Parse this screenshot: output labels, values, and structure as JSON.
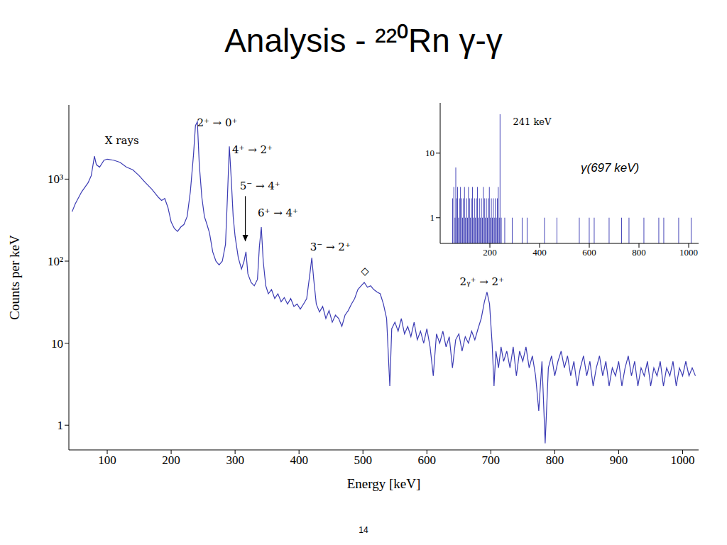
{
  "title": "Analysis - ²²⁰Rn γ-γ",
  "page": 14,
  "chart_data": [
    {
      "type": "line",
      "xlabel": "Energy [keV]",
      "ylabel": "Counts per keV",
      "color": "#3c3cb4",
      "log": "y",
      "xlim": [
        40,
        1025
      ],
      "xticks": [
        100,
        200,
        300,
        400,
        500,
        600,
        700,
        800,
        900,
        1000
      ],
      "ylim": [
        0.5,
        8000
      ],
      "yticks": [
        1,
        10,
        {
          "value": 100,
          "label": "10²"
        },
        {
          "value": 1000,
          "label": "10³"
        }
      ],
      "x": [
        45,
        50,
        60,
        70,
        75,
        80,
        83,
        88,
        95,
        100,
        110,
        120,
        130,
        140,
        150,
        160,
        170,
        180,
        185,
        190,
        195,
        200,
        205,
        210,
        215,
        220,
        225,
        230,
        235,
        238,
        241,
        244,
        248,
        252,
        256,
        260,
        265,
        270,
        275,
        280,
        285,
        288,
        291,
        294,
        297,
        300,
        305,
        310,
        314,
        317,
        320,
        325,
        330,
        335,
        338,
        341,
        344,
        348,
        352,
        357,
        362,
        367,
        372,
        377,
        382,
        387,
        392,
        397,
        402,
        407,
        412,
        417,
        420,
        423,
        427,
        432,
        437,
        442,
        447,
        452,
        457,
        462,
        467,
        472,
        477,
        482,
        487,
        492,
        497,
        502,
        507,
        512,
        517,
        522,
        527,
        532,
        537,
        542,
        545,
        550,
        555,
        560,
        565,
        570,
        575,
        580,
        585,
        590,
        595,
        600,
        605,
        610,
        615,
        620,
        625,
        630,
        635,
        640,
        645,
        650,
        655,
        660,
        665,
        670,
        675,
        680,
        685,
        690,
        694,
        698,
        702,
        705,
        708,
        712,
        716,
        720,
        725,
        730,
        735,
        740,
        745,
        750,
        755,
        760,
        765,
        770,
        775,
        780,
        785,
        790,
        795,
        800,
        805,
        810,
        815,
        820,
        825,
        830,
        835,
        840,
        845,
        850,
        855,
        860,
        865,
        870,
        875,
        880,
        885,
        890,
        895,
        900,
        905,
        910,
        915,
        920,
        925,
        930,
        935,
        940,
        945,
        950,
        955,
        960,
        965,
        970,
        975,
        980,
        985,
        990,
        995,
        1000,
        1005,
        1010,
        1015,
        1020
      ],
      "values": [
        400,
        500,
        700,
        900,
        1100,
        1900,
        1500,
        1400,
        1700,
        1750,
        1700,
        1600,
        1400,
        1300,
        1100,
        900,
        750,
        600,
        550,
        580,
        450,
        300,
        250,
        230,
        260,
        280,
        350,
        700,
        2000,
        4500,
        5000,
        1500,
        600,
        350,
        280,
        220,
        130,
        100,
        90,
        100,
        160,
        600,
        2500,
        1000,
        350,
        200,
        110,
        80,
        100,
        130,
        70,
        55,
        50,
        60,
        150,
        260,
        100,
        50,
        40,
        45,
        35,
        40,
        32,
        36,
        30,
        35,
        28,
        30,
        26,
        30,
        35,
        70,
        110,
        60,
        30,
        24,
        28,
        20,
        25,
        18,
        22,
        20,
        16,
        22,
        25,
        30,
        35,
        45,
        50,
        55,
        48,
        50,
        45,
        42,
        40,
        30,
        20,
        3,
        15,
        18,
        14,
        20,
        13,
        16,
        12,
        18,
        11,
        14,
        10,
        15,
        9,
        4,
        13,
        10,
        14,
        9,
        12,
        5,
        11,
        13,
        8,
        12,
        10,
        14,
        11,
        15,
        20,
        32,
        42,
        30,
        10,
        3,
        8,
        5,
        9,
        6,
        8,
        5,
        9,
        4,
        8,
        6,
        9,
        5,
        7,
        4,
        1.5,
        6,
        0.6,
        5,
        7,
        4,
        6,
        8,
        5,
        7,
        4,
        6,
        3,
        5,
        7,
        4,
        6,
        3,
        5,
        7,
        4,
        6,
        3,
        5,
        4,
        6,
        3,
        5,
        7,
        4,
        6,
        3,
        5,
        4,
        6,
        3,
        5,
        4,
        6,
        3,
        5,
        4,
        6,
        3,
        5,
        4,
        6,
        4,
        5,
        4
      ],
      "annotations": [
        {
          "text": "X rays",
          "x": 123,
          "y": 3000
        },
        {
          "text": "2⁺ → 0⁺",
          "x": 272,
          "y": 4900
        },
        {
          "text": "4⁺ → 2⁺",
          "x": 327,
          "y": 2300
        },
        {
          "text": "5⁻ → 4⁺",
          "x": 339,
          "y": 830,
          "arrow": [
            {
              "x": 316,
              "y": 620
            },
            {
              "x": 316,
              "y": 175
            }
          ]
        },
        {
          "text": "6⁺ → 4⁺",
          "x": 367,
          "y": 390
        },
        {
          "text": "3⁻ → 2⁺",
          "x": 449,
          "y": 150
        },
        {
          "text": "◇",
          "x": 503,
          "y": 76
        },
        {
          "text": "2ᵧ⁺ → 2⁺",
          "x": 686,
          "y": 56
        }
      ]
    },
    {
      "type": "bar",
      "gate": "γ(697 keV)",
      "color": "#3c3cb4",
      "log": "y",
      "xlim": [
        0,
        1040
      ],
      "xticks": [
        200,
        400,
        600,
        800,
        1000
      ],
      "ylim": [
        0.4,
        60
      ],
      "yticks": [
        1,
        10
      ],
      "x": [
        50,
        55,
        60,
        63,
        66,
        70,
        74,
        78,
        82,
        86,
        90,
        94,
        98,
        102,
        106,
        110,
        114,
        118,
        122,
        126,
        130,
        134,
        138,
        142,
        146,
        150,
        154,
        158,
        162,
        166,
        170,
        174,
        178,
        182,
        186,
        190,
        194,
        198,
        202,
        206,
        210,
        214,
        218,
        222,
        226,
        230,
        234,
        238,
        241,
        246,
        260,
        290,
        330,
        350,
        420,
        470,
        560,
        600,
        620,
        680,
        730,
        760,
        820,
        880,
        900,
        960,
        1010
      ],
      "values": [
        2,
        3,
        1,
        6,
        2,
        3,
        1,
        2,
        3,
        2,
        1,
        2,
        3,
        1,
        2,
        1,
        3,
        2,
        1,
        2,
        3,
        1,
        2,
        1,
        2,
        3,
        1,
        2,
        1,
        2,
        1,
        3,
        2,
        1,
        2,
        1,
        2,
        3,
        1,
        2,
        1,
        2,
        1,
        2,
        1,
        2,
        3,
        1,
        40,
        1,
        1,
        1,
        1,
        1,
        1,
        1,
        1,
        1,
        1,
        1,
        1,
        1,
        1,
        1,
        1,
        1,
        1
      ],
      "annotations": [
        {
          "text": "241 keV",
          "x": 370,
          "y": 31
        }
      ]
    }
  ]
}
